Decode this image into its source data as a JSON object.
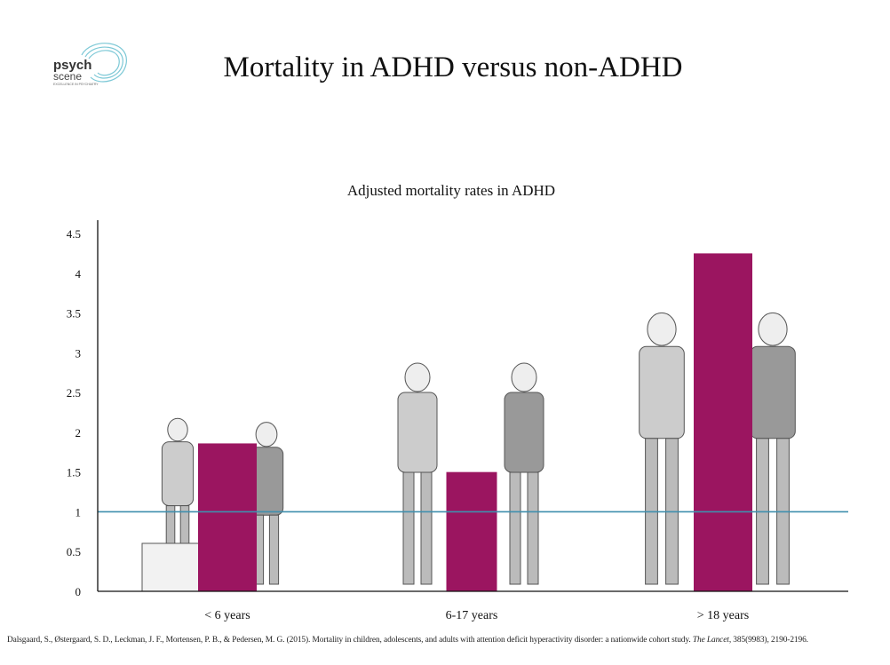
{
  "title": "Mortality in ADHD versus non-ADHD",
  "logo": {
    "line1": "psych",
    "line2": "scene",
    "tagline": "EXCELLENCE IN PSYCHIATRY"
  },
  "chart_data": {
    "type": "bar",
    "title": "Adjusted mortality rates in ADHD",
    "categories": [
      "< 6 years",
      "6-17 years",
      "> 18 years"
    ],
    "values": [
      1.86,
      1.5,
      4.25
    ],
    "ylim": [
      0,
      4.5
    ],
    "yticks": [
      "0",
      "0.5",
      "1",
      "1.5",
      "2",
      "2.5",
      "3",
      "3.5",
      "4",
      "4.5"
    ],
    "reference_line": 1,
    "grid": false,
    "colors": {
      "bar": "#9b1560",
      "reference": "#3f8fae",
      "axis": "#111111"
    }
  },
  "source": {
    "text": "Dalsgaard, S., Østergaard, S. D., Leckman, J. F., Mortensen, P. B., & Pedersen, M. G. (2015). Mortality in children, adolescents, and adults with attention deficit hyperactivity disorder: a nationwide cohort study. ",
    "journal": "The Lancet",
    "tail": ", 385(9983), 2190-2196."
  }
}
